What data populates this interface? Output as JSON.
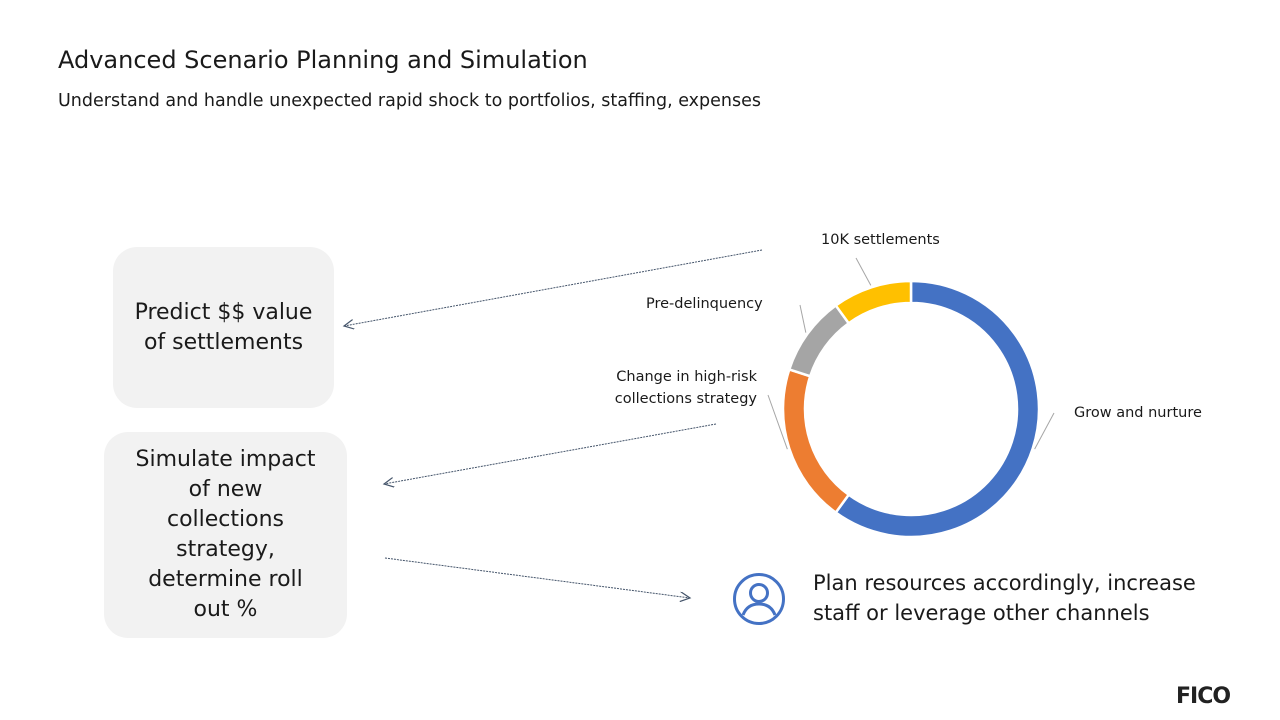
{
  "slide": {
    "title": "Advanced Scenario Planning and Simulation",
    "subtitle": "Understand and handle unexpected rapid shock to portfolios, staffing, expenses"
  },
  "cards": {
    "predict": [
      "Predict $$ value",
      "of settlements"
    ],
    "simulate": [
      "Simulate impact",
      "of new",
      "collections",
      "strategy,",
      "determine roll",
      "out %"
    ]
  },
  "chart_data": {
    "type": "pie",
    "style": "donut",
    "title": "",
    "labels": [
      "Grow and nurture",
      "Change in high-risk collections strategy",
      "Pre-delinquency",
      "10K settlements"
    ],
    "label_lines": [
      [
        "Grow and nurture"
      ],
      [
        "Change in high-risk",
        "collections strategy"
      ],
      [
        "Pre-delinquency"
      ],
      [
        "10K settlements"
      ]
    ],
    "values": [
      60,
      20,
      10,
      10
    ],
    "colors": [
      "#4472C4",
      "#ED7D31",
      "#A5A5A5",
      "#FFC000"
    ]
  },
  "plan": {
    "lines": [
      "Plan resources accordingly, increase",
      "staff or leverage other channels"
    ],
    "icon": "person-circle-icon"
  },
  "brand": {
    "logo_text": "FICO"
  },
  "colors": {
    "arrow": "#44546A",
    "card_bg": "#F2F2F2",
    "icon": "#4472C4"
  }
}
